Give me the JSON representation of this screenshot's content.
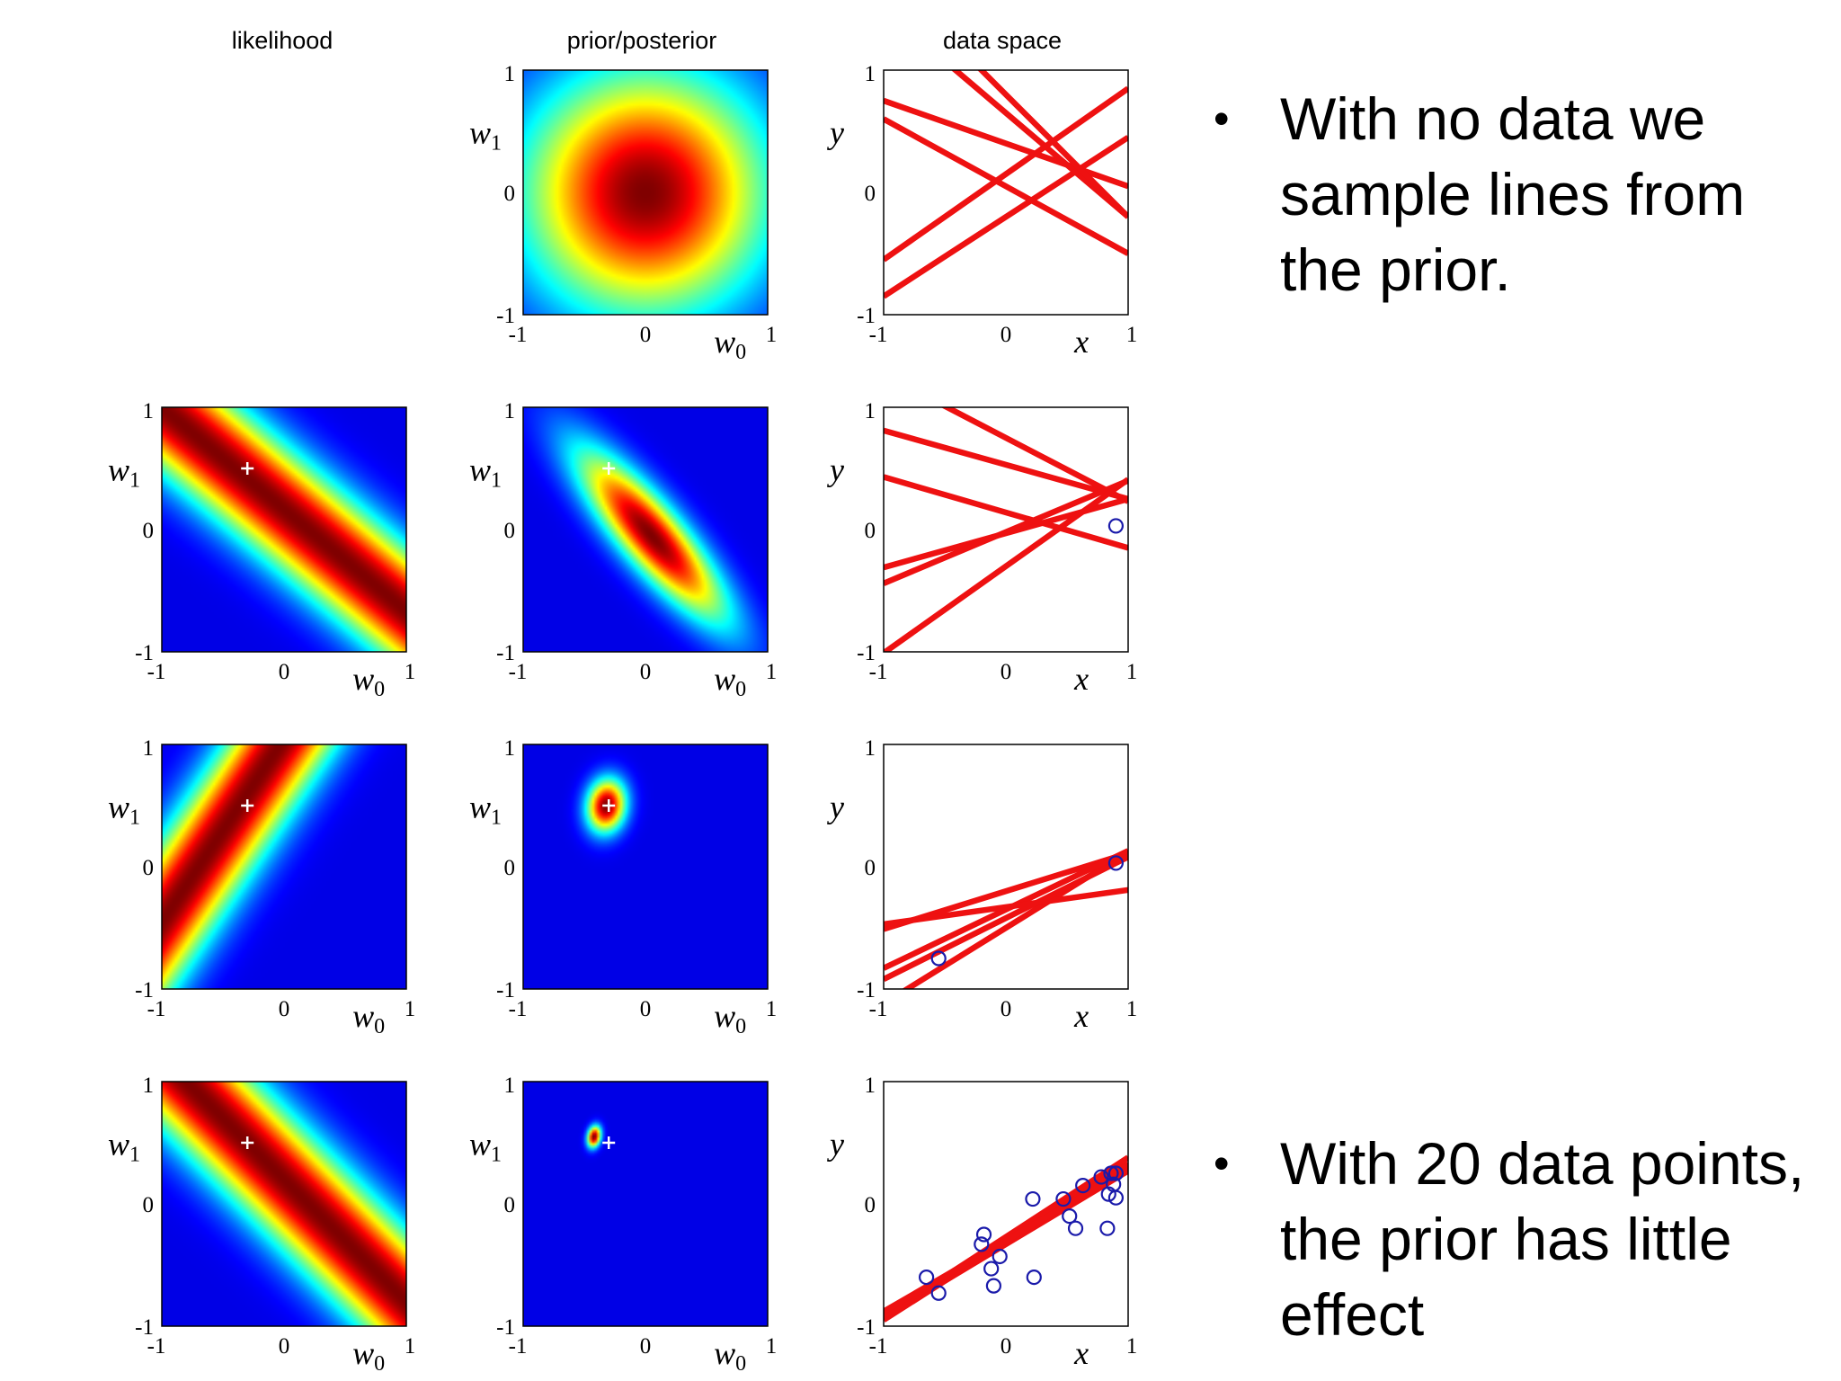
{
  "chart_data": {
    "type": "heatmap",
    "columns": [
      "likelihood",
      "prior/posterior",
      "data space"
    ],
    "axis_labels": {
      "param_x": "w0",
      "param_y": "w1",
      "data_x": "x",
      "data_y": "y"
    },
    "ticks": [
      "-1",
      "0",
      "1"
    ],
    "xlim": [
      -1,
      1
    ],
    "ylim": [
      -1,
      1
    ],
    "colormap": "jet",
    "line_color": "#ee1111",
    "point_color": "#1a1aaa",
    "rows": [
      {
        "likelihood": null,
        "posterior": {
          "mean": [
            0,
            0
          ],
          "sd": [
            0.7,
            0.7
          ],
          "rho": 0
        },
        "lines": [
          [
            0.4,
            -0.35
          ],
          [
            0.65,
            -0.85
          ],
          [
            0.15,
            0.7
          ],
          [
            -0.2,
            0.65
          ],
          [
            0.8,
            -1.0
          ],
          [
            0.05,
            -0.55
          ]
        ],
        "points": []
      },
      {
        "likelihood": {
          "w": [
            1,
            1.2
          ],
          "c": 0.2,
          "sigma": 0.28
        },
        "posterior": {
          "mean": [
            0.05,
            -0.05
          ],
          "sd": [
            0.42,
            0.48
          ],
          "rho": -0.85
        },
        "lines": [
          [
            0.53,
            -0.28
          ],
          [
            0.75,
            -0.52
          ],
          [
            -0.03,
            0.28
          ],
          [
            -0.02,
            0.42
          ],
          [
            0.14,
            -0.29
          ],
          [
            -0.3,
            0.71
          ]
        ],
        "points": [
          [
            0.9,
            0.03
          ]
        ]
      },
      {
        "likelihood": {
          "w": [
            -1.5,
            1
          ],
          "c": 1.05,
          "sigma": 0.26
        },
        "posterior": {
          "mean": [
            -0.32,
            0.5
          ],
          "sd": [
            0.11,
            0.15
          ],
          "rho": 0.1
        },
        "lines": [
          [
            -0.5,
            0.62
          ],
          [
            -0.2,
            0.31
          ],
          [
            -0.35,
            0.48
          ],
          [
            -0.33,
            0.14
          ],
          [
            -0.42,
            0.5
          ]
        ],
        "points": [
          [
            -0.55,
            -0.75
          ],
          [
            0.9,
            0.03
          ]
        ]
      },
      {
        "likelihood": {
          "w": [
            1,
            1
          ],
          "c": 0.2,
          "sigma": 0.28
        },
        "posterior": {
          "mean": [
            -0.42,
            0.55
          ],
          "sd": [
            0.038,
            0.06
          ],
          "rho": 0.2
        },
        "lines": [
          [
            -0.33,
            0.6
          ],
          [
            -0.3,
            0.6
          ],
          [
            -0.31,
            0.64
          ],
          [
            -0.27,
            0.65
          ],
          [
            -0.3,
            0.58
          ]
        ],
        "points": [
          [
            -0.65,
            -0.6
          ],
          [
            -0.55,
            -0.73
          ],
          [
            -0.18,
            -0.25
          ],
          [
            -0.2,
            -0.33
          ],
          [
            -0.12,
            -0.53
          ],
          [
            -0.1,
            -0.67
          ],
          [
            -0.05,
            -0.43
          ],
          [
            0.22,
            0.04
          ],
          [
            0.47,
            0.04
          ],
          [
            0.52,
            -0.1
          ],
          [
            0.57,
            -0.2
          ],
          [
            0.63,
            0.15
          ],
          [
            0.78,
            0.22
          ],
          [
            0.84,
            0.08
          ],
          [
            0.86,
            0.25
          ],
          [
            0.88,
            0.16
          ],
          [
            0.9,
            0.25
          ],
          [
            0.9,
            0.05
          ],
          [
            0.83,
            -0.2
          ],
          [
            0.23,
            -0.6
          ]
        ]
      }
    ]
  },
  "bullets": [
    "With no data we sample lines from the prior.",
    "With 20 data points, the prior has little effect"
  ]
}
